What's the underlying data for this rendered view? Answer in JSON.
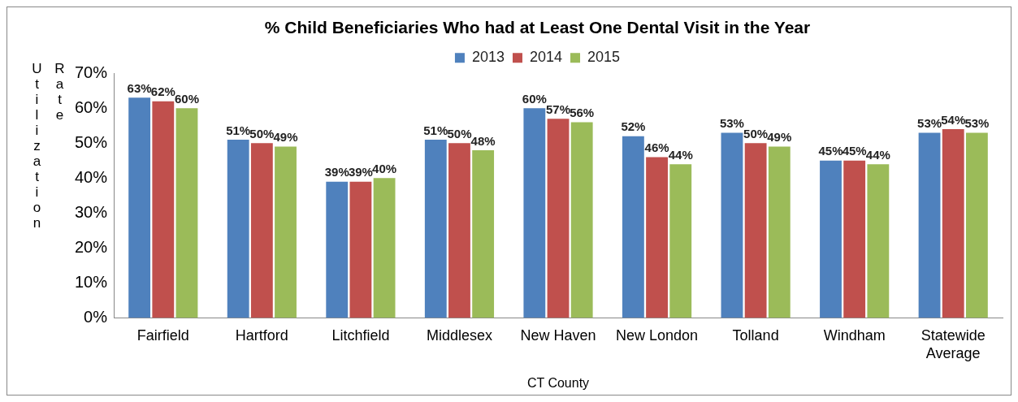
{
  "chart_data": {
    "type": "bar",
    "title": "% Child Beneficiaries Who had at Least One Dental Visit in the Year",
    "xlabel": "CT County",
    "ylabel": "Utilization Rate",
    "categories": [
      "Fairfield",
      "Hartford",
      "Litchfield",
      "Middlesex",
      "New Haven",
      "New London",
      "Tolland",
      "Windham",
      "Statewide Average"
    ],
    "series": [
      {
        "name": "2013",
        "color": "#4f81bd",
        "values": [
          63,
          51,
          39,
          51,
          60,
          52,
          53,
          45,
          53
        ],
        "value_labels": [
          "63%",
          "51%",
          "39%",
          "51%",
          "60%",
          "52%",
          "53%",
          "45%",
          "53%"
        ]
      },
      {
        "name": "2014",
        "color": "#c0504d",
        "values": [
          62,
          50,
          39,
          50,
          57,
          46,
          50,
          45,
          54
        ],
        "value_labels": [
          "62%",
          "50%",
          "39%",
          "50%",
          "57%",
          "46%",
          "50%",
          "45%",
          "54%"
        ]
      },
      {
        "name": "2015",
        "color": "#9bbb59",
        "values": [
          60,
          49,
          40,
          48,
          56,
          44,
          49,
          44,
          53
        ],
        "value_labels": [
          "60%",
          "49%",
          "40%",
          "48%",
          "56%",
          "44%",
          "49%",
          "44%",
          "53%"
        ]
      }
    ],
    "ylim": [
      0,
      70
    ],
    "yticks": [
      {
        "value": 0,
        "label": "0%"
      },
      {
        "value": 10,
        "label": "10%"
      },
      {
        "value": 20,
        "label": "20%"
      },
      {
        "value": 30,
        "label": "30%"
      },
      {
        "value": 40,
        "label": "40%"
      },
      {
        "value": 50,
        "label": "50%"
      },
      {
        "value": 60,
        "label": "60%"
      },
      {
        "value": 70,
        "label": "70%"
      }
    ],
    "grid": false,
    "legend": "top"
  }
}
